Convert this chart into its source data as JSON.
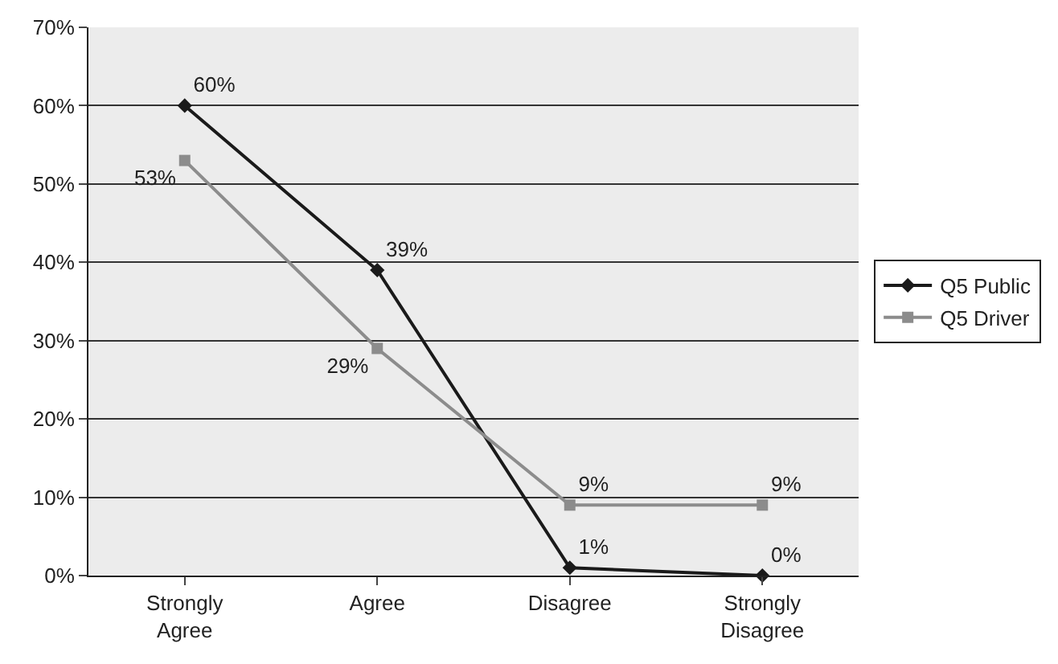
{
  "chart_data": {
    "type": "line",
    "categories": [
      "Strongly\nAgree",
      "Agree",
      "Disagree",
      "Strongly\nDisagree"
    ],
    "series": [
      {
        "name": "Q5 Public",
        "color": "#1a1a1a",
        "marker": "diamond",
        "values": [
          60,
          39,
          1,
          0
        ],
        "value_labels": [
          "60%",
          "39%",
          "1%",
          "0%"
        ]
      },
      {
        "name": "Q5 Driver",
        "color": "#8c8c8c",
        "marker": "square",
        "values": [
          53,
          29,
          9,
          9
        ],
        "value_labels": [
          "53%",
          "29%",
          "9%",
          "9%"
        ]
      }
    ],
    "ylim": [
      0,
      70
    ],
    "yticks": [
      {
        "value": 0,
        "label": "0%"
      },
      {
        "value": 10,
        "label": "10%"
      },
      {
        "value": 20,
        "label": "20%"
      },
      {
        "value": 30,
        "label": "30%"
      },
      {
        "value": 40,
        "label": "40%"
      },
      {
        "value": 50,
        "label": "50%"
      },
      {
        "value": 60,
        "label": "60%"
      },
      {
        "value": 70,
        "label": "70%"
      }
    ],
    "grid": "y",
    "legend": "right"
  }
}
